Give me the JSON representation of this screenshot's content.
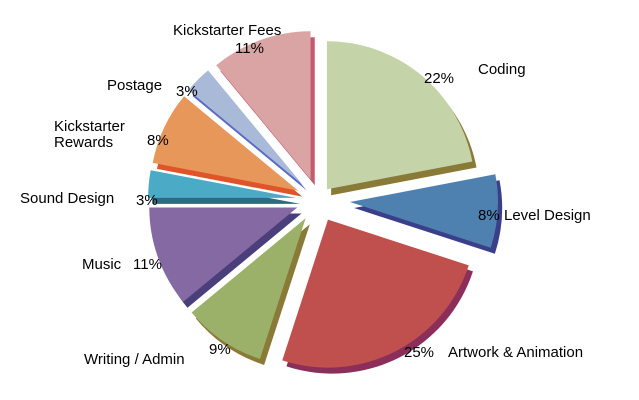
{
  "chart_data": {
    "type": "pie",
    "style": "3d-exploded",
    "title": "",
    "slices": [
      {
        "label": "Coding",
        "percent_label": "22%",
        "value": 22,
        "color": "#c4d4a8",
        "side": "#8a7a38"
      },
      {
        "label": "Level Design",
        "percent_label": "8%",
        "value": 8,
        "color": "#4f81b0",
        "side": "#3a3f8a"
      },
      {
        "label": "Artwork & Animation",
        "percent_label": "25%",
        "value": 25,
        "color": "#c0504d",
        "side": "#8b2f5a"
      },
      {
        "label": "Writing / Admin",
        "percent_label": "9%",
        "value": 9,
        "color": "#9bb068",
        "side": "#8a7a38"
      },
      {
        "label": "Music",
        "percent_label": "11%",
        "value": 11,
        "color": "#8469a2",
        "side": "#4a3f7a"
      },
      {
        "label": "Sound Design",
        "percent_label": "3%",
        "value": 3,
        "color": "#4baac6",
        "side": "#2f6a85"
      },
      {
        "label": "Kickstarter\nRewards",
        "percent_label": "8%",
        "value": 8,
        "color": "#e8975a",
        "side": "#e0542a"
      },
      {
        "label": "Postage",
        "percent_label": "3%",
        "value": 3,
        "color": "#a9b9d8",
        "side": "#5a6ac8"
      },
      {
        "label": "Kickstarter Fees",
        "percent_label": "11%",
        "value": 11,
        "color": "#dba4a4",
        "side": "#c45a6e"
      }
    ]
  }
}
